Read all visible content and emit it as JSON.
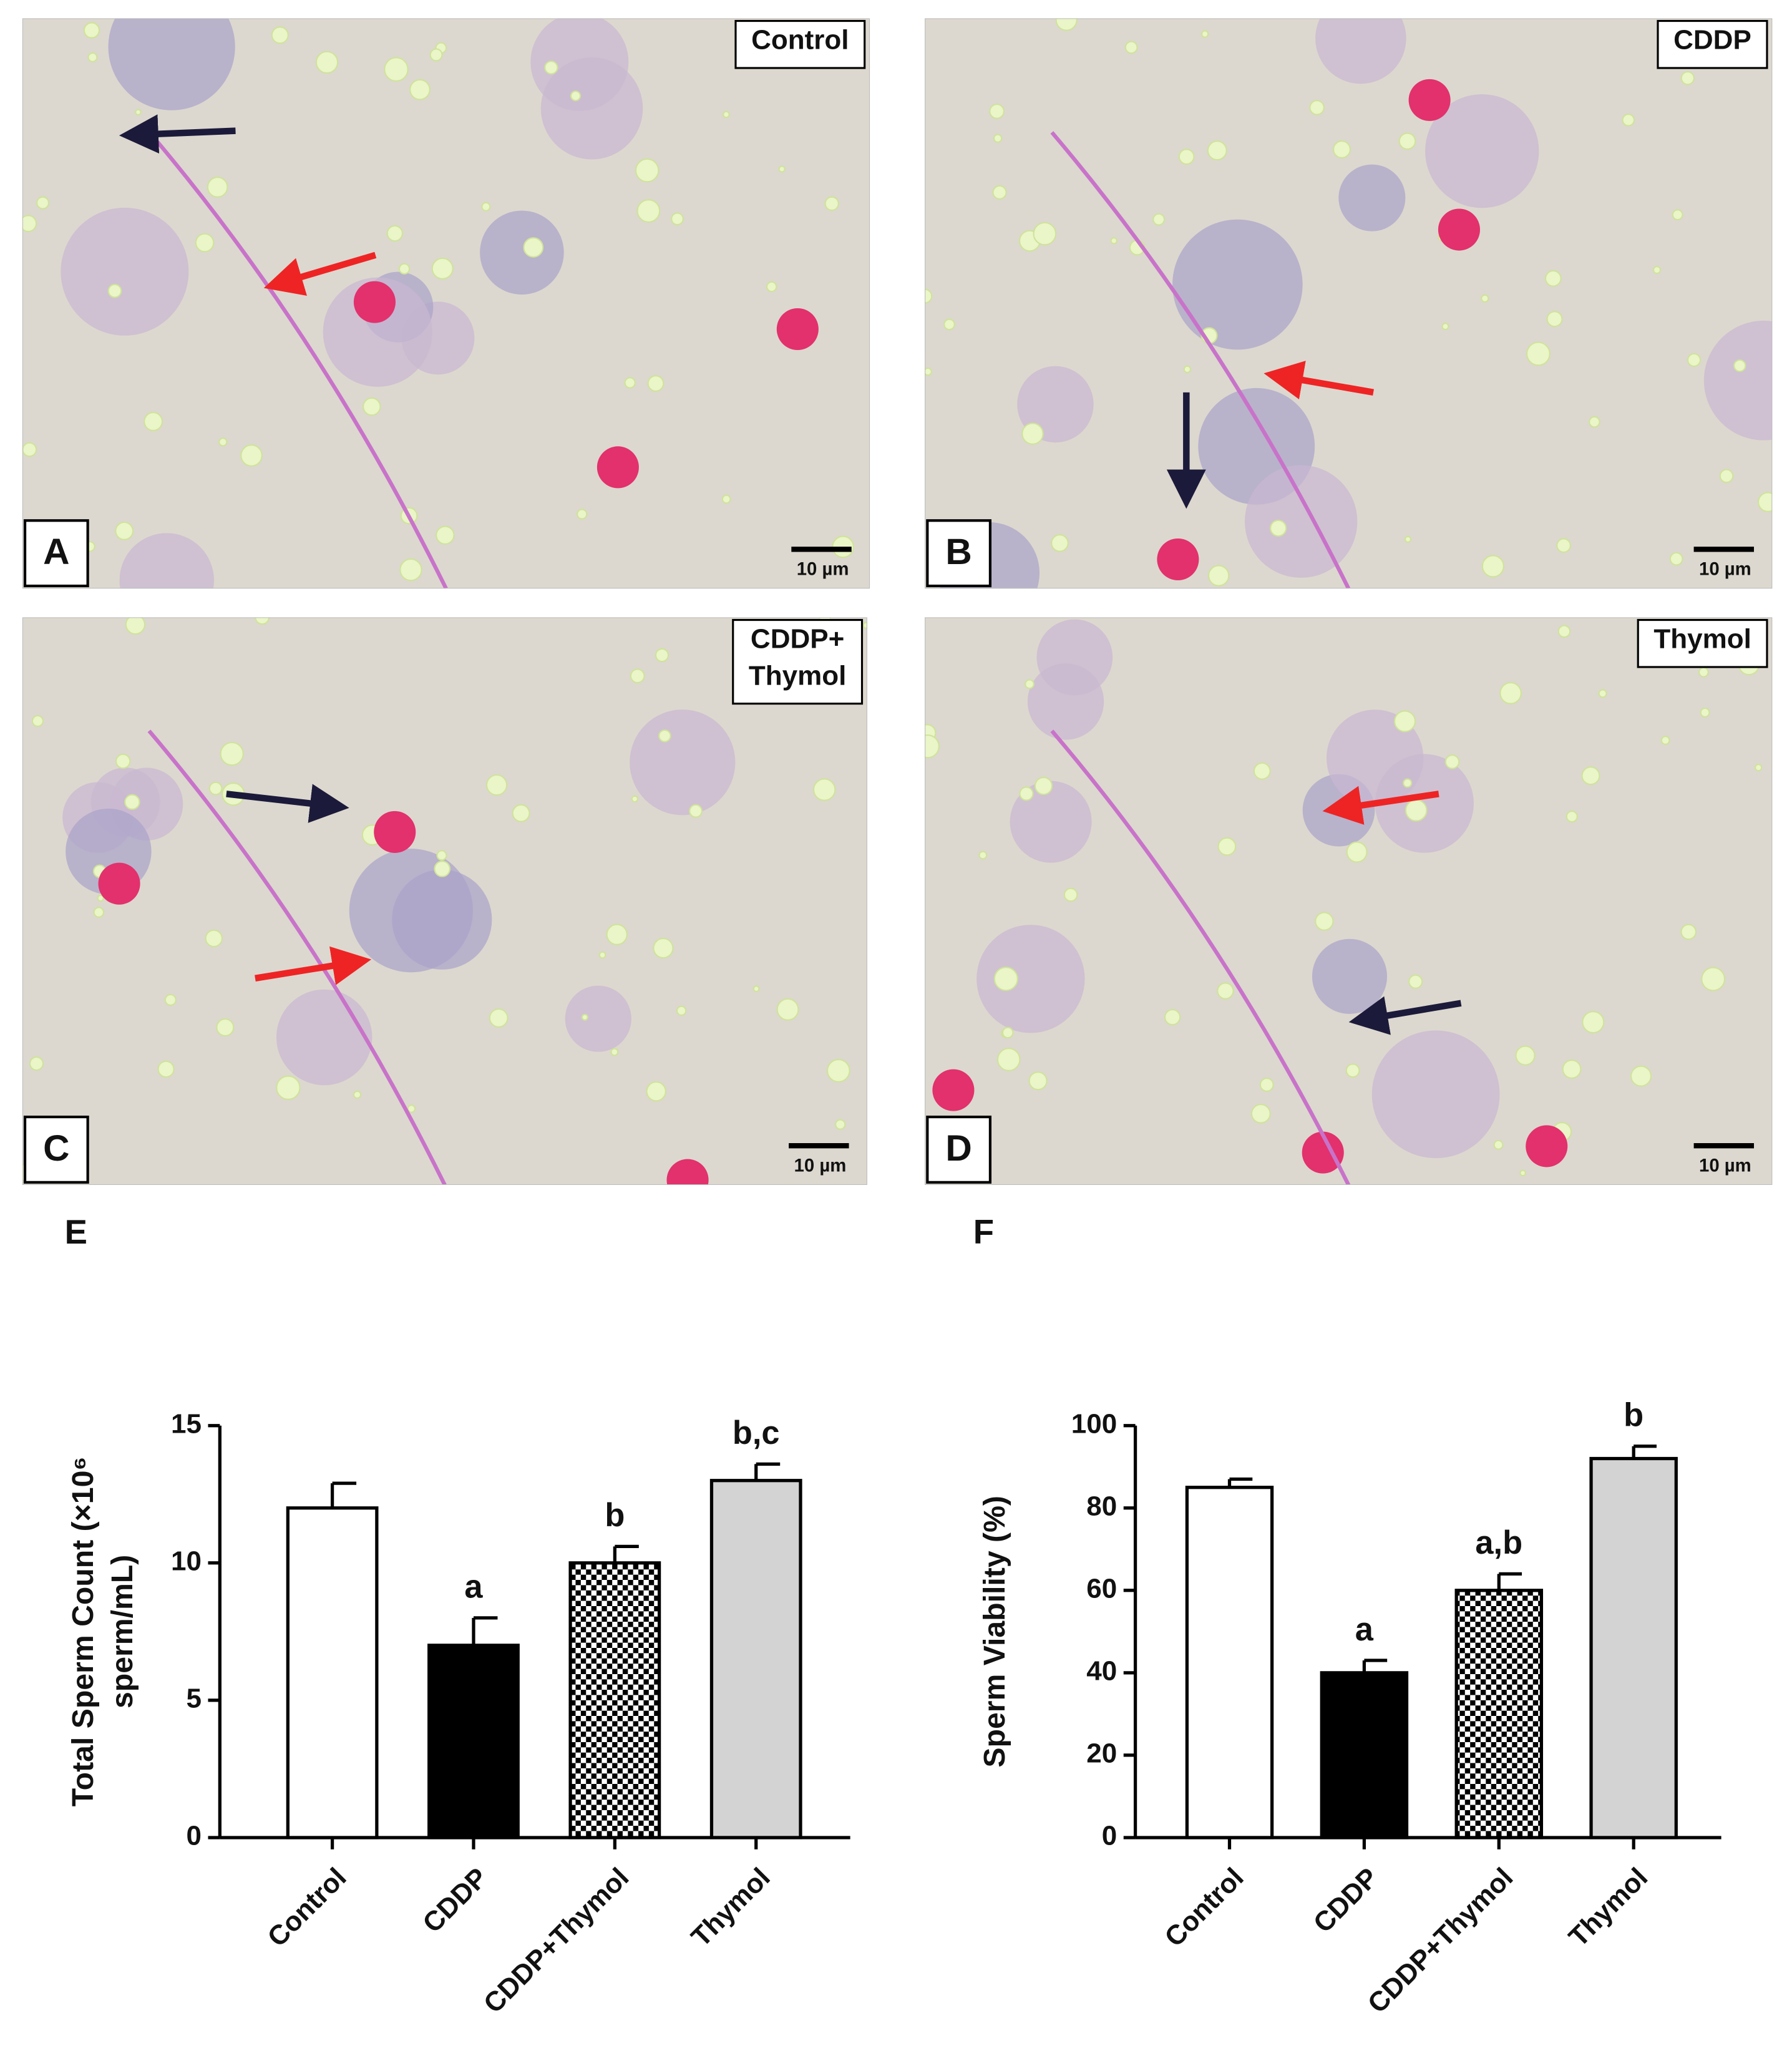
{
  "panels": [
    {
      "letter": "A",
      "group": [
        "Control"
      ],
      "scale_bar": "10 µm"
    },
    {
      "letter": "B",
      "group": [
        "CDDP"
      ],
      "scale_bar": "10 µm"
    },
    {
      "letter": "C",
      "group": [
        "CDDP+",
        "Thymol"
      ],
      "scale_bar": "10 µm"
    },
    {
      "letter": "D",
      "group": [
        "Thymol"
      ],
      "scale_bar": "10 µm"
    }
  ],
  "chart_data": [
    {
      "type": "bar",
      "panel_label": "E",
      "y_label": [
        "Total Sperm Count (×10⁶",
        "sperm/mL)"
      ],
      "categories": [
        "Control",
        "CDDP",
        "CDDP+Thymol",
        "Thymol"
      ],
      "values": [
        12,
        7,
        10,
        13
      ],
      "errors": [
        0.9,
        1.0,
        0.6,
        0.6
      ],
      "significance": [
        null,
        "a",
        "b",
        "b,c"
      ],
      "fills": [
        "#ffffff",
        "#000000",
        "checker",
        "#d3d3d3"
      ],
      "ylim": [
        0,
        15
      ],
      "yticks": [
        0,
        5,
        10,
        15
      ]
    },
    {
      "type": "bar",
      "panel_label": "F",
      "y_label": [
        "Sperm Viability (%)"
      ],
      "categories": [
        "Control",
        "CDDP",
        "CDDP+Thymol",
        "Thymol"
      ],
      "values": [
        85,
        40,
        60,
        92
      ],
      "errors": [
        2,
        3,
        4,
        3
      ],
      "significance": [
        null,
        "a",
        "a,b",
        "b"
      ],
      "fills": [
        "#ffffff",
        "#000000",
        "checker",
        "#d3d3d3"
      ],
      "ylim": [
        0,
        100
      ],
      "yticks": [
        0,
        20,
        40,
        60,
        80,
        100
      ]
    }
  ]
}
